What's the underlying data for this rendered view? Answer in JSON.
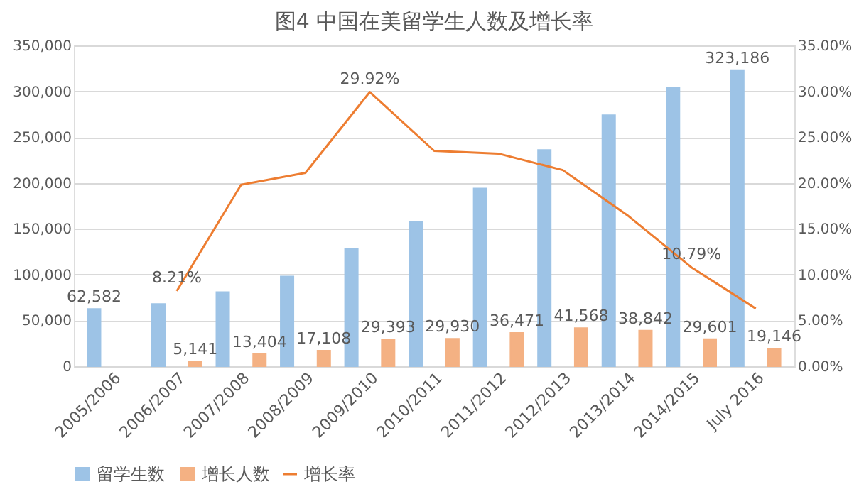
{
  "chart_data": {
    "type": "bar",
    "title": "图4 中国在美留学生人数及增长率",
    "categories": [
      "2005/2006",
      "2006/2007",
      "2007/2008",
      "2008/2009",
      "2009/2010",
      "2010/2011",
      "2011/2012",
      "2012/2013",
      "2013/2014",
      "2014/2015",
      "July 2016"
    ],
    "series": [
      {
        "name": "留学生数",
        "type": "bar",
        "color": "#9dc3e6",
        "values": [
          62582,
          68000,
          81000,
          98000,
          128000,
          158000,
          194000,
          236000,
          274000,
          304000,
          323186
        ],
        "value_labels": [
          "62,582",
          null,
          null,
          null,
          null,
          null,
          null,
          null,
          null,
          null,
          "323,186"
        ]
      },
      {
        "name": "增长人数",
        "type": "bar",
        "color": "#f4b183",
        "values": [
          null,
          5141,
          13404,
          17108,
          29393,
          29930,
          36471,
          41568,
          38842,
          29601,
          19146
        ],
        "value_labels": [
          null,
          "5,141",
          "13,404",
          "17,108",
          "29,393",
          "29,930",
          "36,471",
          "41,568",
          "38,842",
          "29,601",
          "19,146"
        ]
      },
      {
        "name": "增长率",
        "type": "line",
        "axis": "y2",
        "color": "#ed7d31",
        "values": [
          null,
          8.21,
          19.8,
          21.1,
          29.92,
          23.5,
          23.2,
          21.4,
          16.5,
          10.79,
          6.3
        ],
        "value_labels": [
          null,
          "8.21%",
          null,
          null,
          "29.92%",
          null,
          null,
          null,
          null,
          "10.79%",
          null
        ]
      }
    ],
    "ylim": [
      0,
      350000
    ],
    "yticks": [
      {
        "value": 0,
        "label": "0"
      },
      {
        "value": 50000,
        "label": "50,000"
      },
      {
        "value": 100000,
        "label": "100,000"
      },
      {
        "value": 150000,
        "label": "150,000"
      },
      {
        "value": 200000,
        "label": "200,000"
      },
      {
        "value": 250000,
        "label": "250,000"
      },
      {
        "value": 300000,
        "label": "300,000"
      },
      {
        "value": 350000,
        "label": "350,000"
      }
    ],
    "y2lim": [
      0,
      35
    ],
    "y2ticks": [
      {
        "value": 0,
        "label": "0.00%"
      },
      {
        "value": 5,
        "label": "5.00%"
      },
      {
        "value": 10,
        "label": "10.00%"
      },
      {
        "value": 15,
        "label": "15.00%"
      },
      {
        "value": 20,
        "label": "20.00%"
      },
      {
        "value": 25,
        "label": "25.00%"
      },
      {
        "value": 30,
        "label": "30.00%"
      },
      {
        "value": 35,
        "label": "35.00%"
      }
    ],
    "grid": "y",
    "legend": "bottom"
  }
}
